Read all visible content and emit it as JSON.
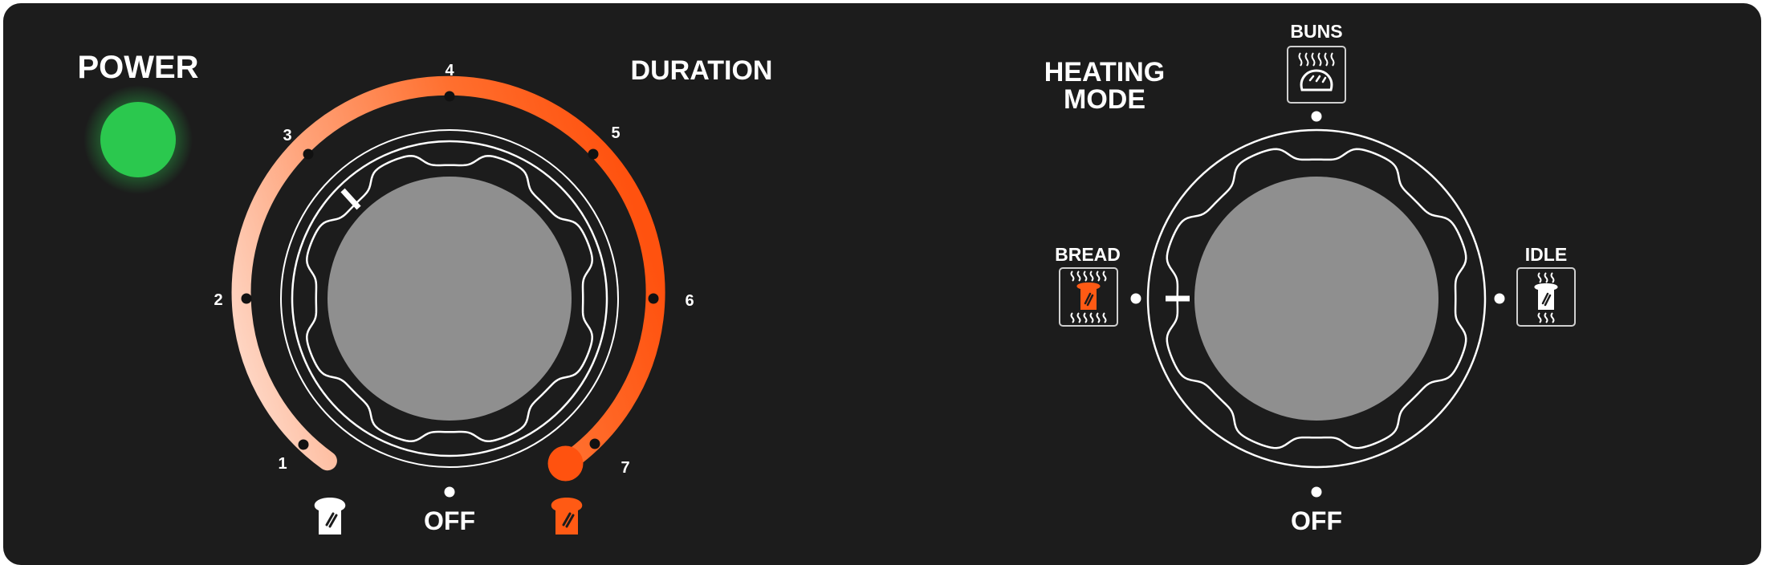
{
  "power": {
    "label": "POWER",
    "indicator_color": "#2bc84e"
  },
  "duration": {
    "label": "DURATION",
    "scale": [
      "1",
      "2",
      "3",
      "4",
      "5",
      "6",
      "7"
    ],
    "off_label": "OFF",
    "left_icon": "toast-light-icon",
    "right_icon": "toast-dark-icon",
    "accent_color": "#ff5a14"
  },
  "heating_mode": {
    "label_line1": "HEATING",
    "label_line2": "MODE",
    "modes": [
      {
        "label": "BUNS",
        "icon": "buns-icon"
      },
      {
        "label": "BREAD",
        "icon": "bread-both-sides-icon"
      },
      {
        "label": "IDLE",
        "icon": "idle-icon"
      }
    ],
    "off_label": "OFF",
    "selected": "BREAD"
  },
  "knob_color": "#8f8f8f"
}
